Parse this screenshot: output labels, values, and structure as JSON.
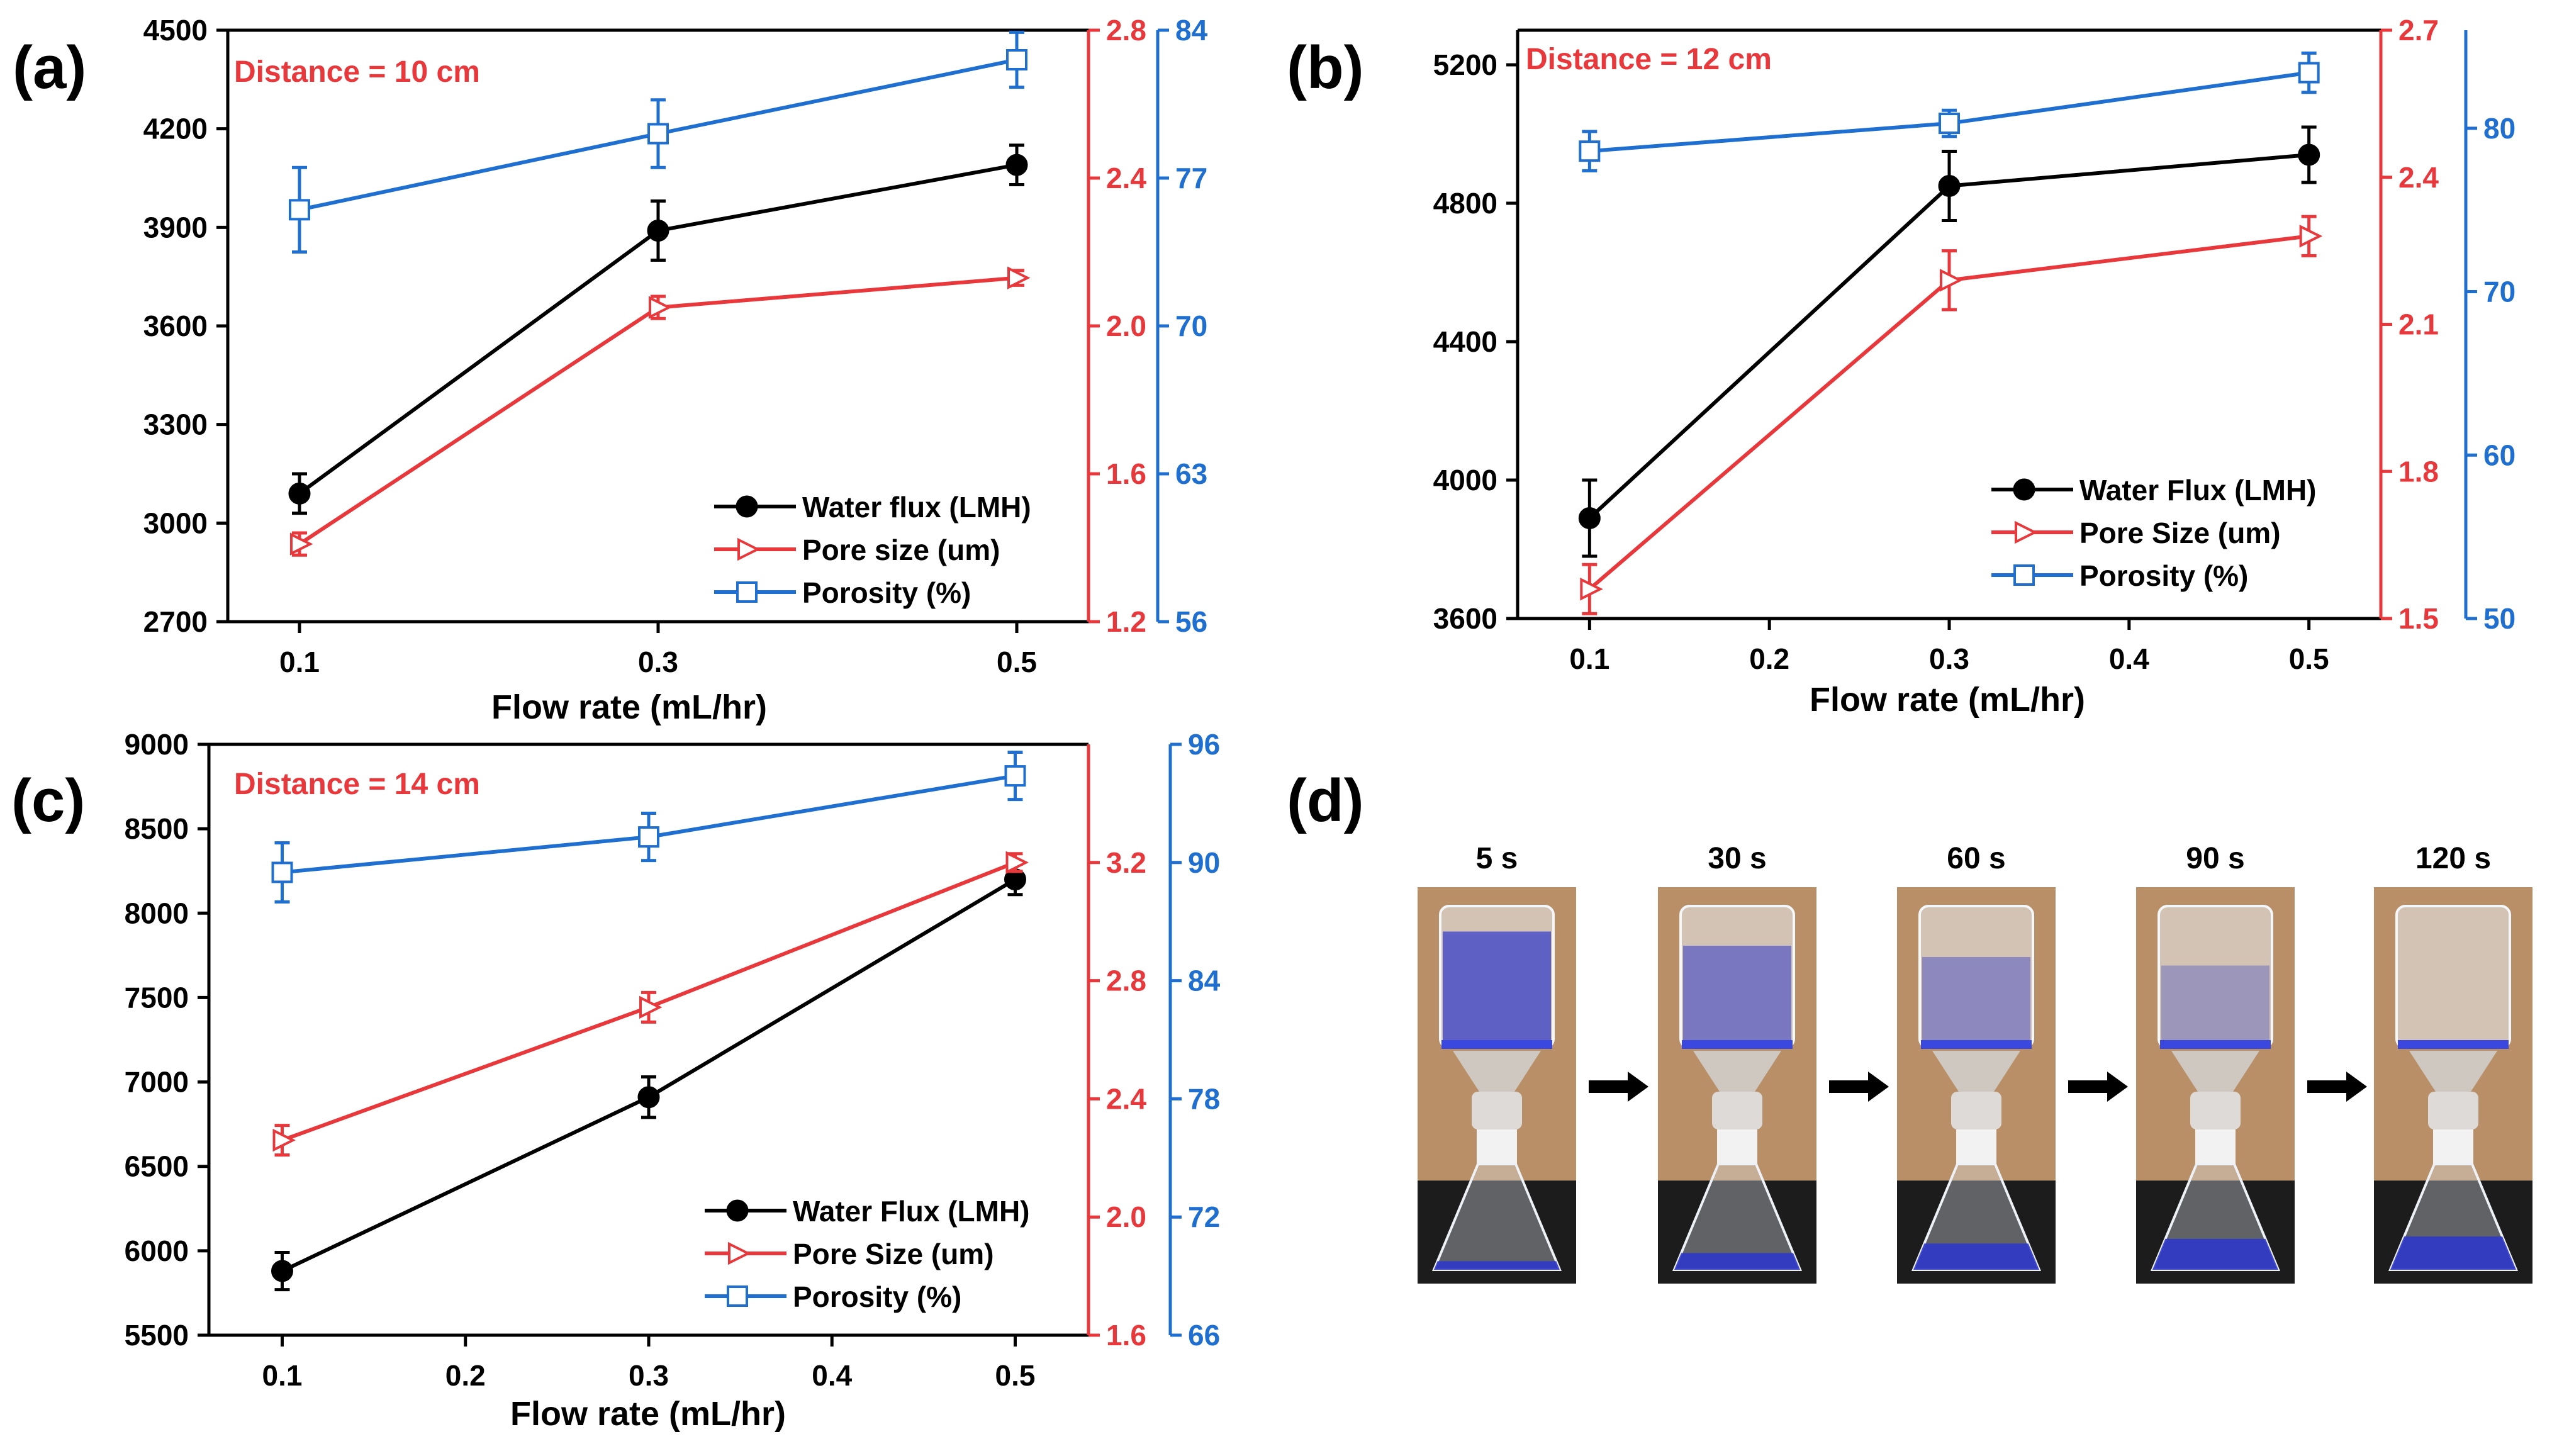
{
  "colors": {
    "flux": "#000000",
    "pore": "#e8383b",
    "porosity": "#1f6fd1",
    "annotation": "#e8383b",
    "arrow": "#000000"
  },
  "chart_data": [
    {
      "panel": "(a)",
      "type": "line",
      "annotation": "Distance = 10 cm",
      "x": [
        0.1,
        0.3,
        0.5
      ],
      "xticks": [
        "0.1",
        "0.3",
        "0.5"
      ],
      "xlim": [
        0.06,
        0.54
      ],
      "xlabel": "Flow rate (mL/hr)",
      "axes": {
        "left": {
          "lim": [
            2700,
            4500
          ],
          "ticks": [
            "2700",
            "3000",
            "3300",
            "3600",
            "3900",
            "4200",
            "4500"
          ]
        },
        "right1": {
          "lim": [
            1.2,
            2.8
          ],
          "ticks": [
            "1.2",
            "1.6",
            "2.0",
            "2.4",
            "2.8"
          ]
        },
        "right2": {
          "lim": [
            56,
            84
          ],
          "ticks": [
            "56",
            "63",
            "70",
            "77",
            "84"
          ]
        }
      },
      "series": [
        {
          "name": "Water flux (LMH)",
          "axis": "left",
          "values": [
            3090,
            3890,
            4090
          ],
          "errors": [
            60,
            90,
            60
          ]
        },
        {
          "name": "Pore size (um)",
          "axis": "right1",
          "values": [
            1.41,
            2.05,
            2.13
          ],
          "errors": [
            0.03,
            0.03,
            0.02
          ]
        },
        {
          "name": "Porosity (%)",
          "axis": "right2",
          "values": [
            75.5,
            79.1,
            82.6
          ],
          "errors": [
            2.0,
            1.6,
            1.3
          ]
        }
      ]
    },
    {
      "panel": "(b)",
      "type": "line",
      "annotation": "Distance = 12 cm",
      "x": [
        0.1,
        0.3,
        0.5
      ],
      "xticks": [
        "0.1",
        "0.2",
        "0.3",
        "0.4",
        "0.5"
      ],
      "xlim": [
        0.06,
        0.54
      ],
      "xlabel": "Flow rate (mL/hr)",
      "axes": {
        "left": {
          "lim": [
            3600,
            5300
          ],
          "ticks": [
            "3600",
            "4000",
            "4400",
            "4800",
            "5200"
          ]
        },
        "right1": {
          "lim": [
            1.5,
            2.7
          ],
          "ticks": [
            "1.5",
            "1.8",
            "2.1",
            "2.4",
            "2.7"
          ]
        },
        "right2": {
          "lim": [
            50,
            86
          ],
          "ticks": [
            "50",
            "60",
            "70",
            "80"
          ]
        }
      },
      "series": [
        {
          "name": "Water Flux (LMH)",
          "axis": "left",
          "values": [
            3890,
            4850,
            4940
          ],
          "errors": [
            110,
            100,
            80
          ]
        },
        {
          "name": "Pore Size (um)",
          "axis": "right1",
          "values": [
            1.56,
            2.19,
            2.28
          ],
          "errors": [
            0.05,
            0.06,
            0.04
          ]
        },
        {
          "name": "Porosity (%)",
          "axis": "right2",
          "values": [
            78.6,
            80.3,
            83.4
          ],
          "errors": [
            1.2,
            0.8,
            1.2
          ]
        }
      ]
    },
    {
      "panel": "(c)",
      "type": "line",
      "annotation": "Distance = 14 cm",
      "x": [
        0.1,
        0.3,
        0.5
      ],
      "xticks": [
        "0.1",
        "0.2",
        "0.3",
        "0.4",
        "0.5"
      ],
      "xlim": [
        0.06,
        0.54
      ],
      "xlabel": "Flow rate (mL/hr)",
      "axes": {
        "left": {
          "lim": [
            5500,
            9000
          ],
          "ticks": [
            "5500",
            "6000",
            "6500",
            "7000",
            "7500",
            "8000",
            "8500",
            "9000"
          ]
        },
        "right1": {
          "lim": [
            1.6,
            3.6
          ],
          "ticks": [
            "1.6",
            "2.0",
            "2.4",
            "2.8",
            "3.2"
          ]
        },
        "right2": {
          "lim": [
            66,
            96
          ],
          "ticks": [
            "66",
            "72",
            "78",
            "84",
            "90",
            "96"
          ]
        }
      },
      "series": [
        {
          "name": "Water Flux (LMH)",
          "axis": "left",
          "values": [
            5880,
            6910,
            8200
          ],
          "errors": [
            110,
            120,
            90
          ]
        },
        {
          "name": "Pore Size (um)",
          "axis": "right1",
          "values": [
            2.26,
            2.71,
            3.2
          ],
          "errors": [
            0.05,
            0.05,
            0.03
          ]
        },
        {
          "name": "Porosity (%)",
          "axis": "right2",
          "values": [
            89.5,
            91.3,
            94.4
          ],
          "errors": [
            1.5,
            1.2,
            1.2
          ]
        }
      ]
    }
  ],
  "panel_d": {
    "label": "(d)",
    "frames": [
      {
        "time": "5 s",
        "liquid_top": 0.18,
        "flask_fill": 0.18
      },
      {
        "time": "30 s",
        "liquid_top": 0.28,
        "flask_fill": 0.35
      },
      {
        "time": "60 s",
        "liquid_top": 0.36,
        "flask_fill": 0.55
      },
      {
        "time": "90 s",
        "liquid_top": 0.42,
        "flask_fill": 0.65
      },
      {
        "time": "120 s",
        "liquid_top": 0.46,
        "flask_fill": 0.7
      }
    ]
  }
}
